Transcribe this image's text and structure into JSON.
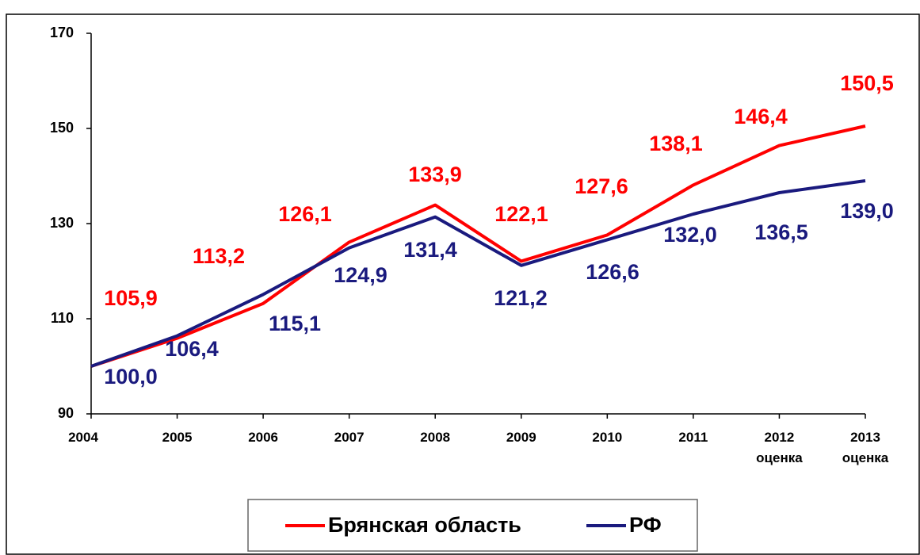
{
  "chart_data": {
    "type": "line",
    "categories": [
      "2004",
      "2005",
      "2006",
      "2007",
      "2008",
      "2009",
      "2010",
      "2011",
      "2012\nоценка",
      "2013\nоценка"
    ],
    "series": [
      {
        "name": "Брянская область",
        "color": "#ff0000",
        "values": [
          100.0,
          105.9,
          113.2,
          126.1,
          133.9,
          122.1,
          127.6,
          138.1,
          146.4,
          150.5
        ],
        "value_labels": [
          null,
          "105,9",
          "113,2",
          "126,1",
          "133,9",
          "122,1",
          "127,6",
          "138,1",
          "146,4",
          "150,5"
        ]
      },
      {
        "name": "РФ",
        "color": "#1a1a7e",
        "values": [
          100.0,
          106.4,
          115.1,
          124.9,
          131.4,
          121.2,
          126.6,
          132.0,
          136.5,
          139.0
        ],
        "value_labels": [
          "100,0",
          "106,4",
          "115,1",
          "124,9",
          "131,4",
          "121,2",
          "126,6",
          "132,0",
          "136,5",
          "139,0"
        ]
      }
    ],
    "ylim": [
      90,
      170
    ],
    "yticks": [
      90,
      110,
      130,
      150,
      170
    ],
    "grid": false,
    "legend": "bottom"
  }
}
